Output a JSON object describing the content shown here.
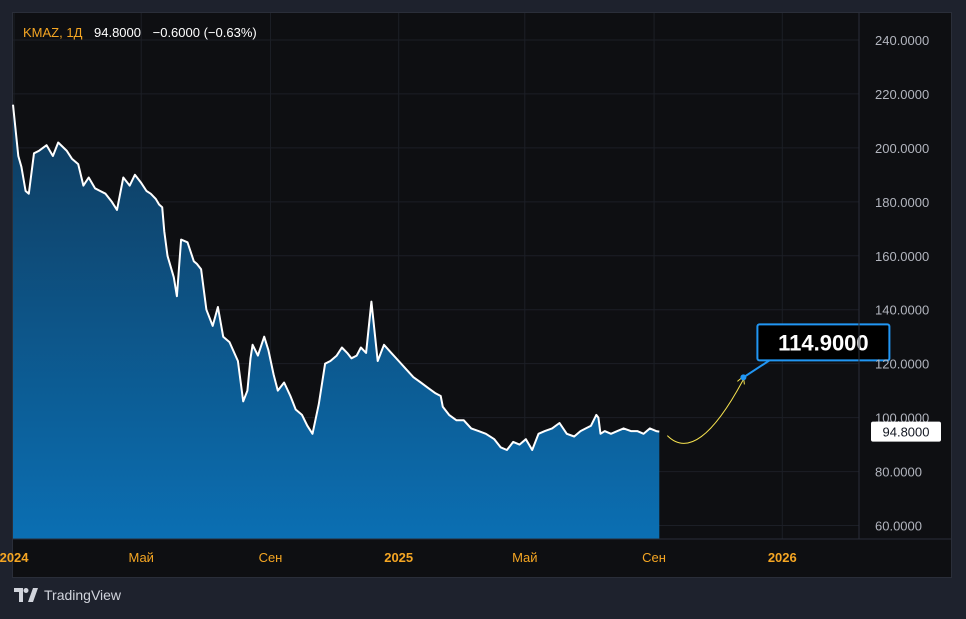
{
  "legend": {
    "symbol": "KMAZ, 1Д",
    "price": "94.8000",
    "change": "−0.6000 (−0.63%)"
  },
  "branding": {
    "name": "TradingView"
  },
  "colors": {
    "background": "#0e0f12",
    "page": "#1e222d",
    "line": "#ffffff",
    "area_top": "#0f3a5c",
    "area_bottom": "#0b6fb3",
    "accent": "#f5a623",
    "callout_border": "#2196f3",
    "forecast_arrow": "#f7e34f"
  },
  "chart_data": {
    "type": "area",
    "title": "",
    "ylim": [
      55,
      250
    ],
    "y_ticks": [
      "240.0000",
      "220.0000",
      "200.0000",
      "180.0000",
      "160.0000",
      "140.0000",
      "120.0000",
      "100.0000",
      "80.0000",
      "60.0000"
    ],
    "y_tick_values": [
      240,
      220,
      200,
      180,
      160,
      140,
      120,
      100,
      80,
      60
    ],
    "x_ticks": [
      {
        "label": "2024",
        "date": "2024-01-01",
        "bold": true
      },
      {
        "label": "Май",
        "date": "2024-05-01",
        "bold": false
      },
      {
        "label": "Сен",
        "date": "2024-09-01",
        "bold": false
      },
      {
        "label": "2025",
        "date": "2025-01-01",
        "bold": true
      },
      {
        "label": "Май",
        "date": "2025-05-01",
        "bold": false
      },
      {
        "label": "Сен",
        "date": "2025-09-01",
        "bold": false
      },
      {
        "label": "2026",
        "date": "2026-01-01",
        "bold": true
      }
    ],
    "xlim": [
      "2023-12-31",
      "2026-03-15"
    ],
    "grid": true,
    "series": [
      {
        "x": [
          "2023-12-31",
          "2024-01-05",
          "2024-01-08",
          "2024-01-12",
          "2024-01-15",
          "2024-01-20",
          "2024-01-25",
          "2024-02-01",
          "2024-02-07",
          "2024-02-12",
          "2024-02-20",
          "2024-02-25",
          "2024-03-02",
          "2024-03-07",
          "2024-03-12",
          "2024-03-18",
          "2024-03-23",
          "2024-03-28",
          "2024-04-03",
          "2024-04-08",
          "2024-04-14",
          "2024-04-20",
          "2024-04-25",
          "2024-05-01",
          "2024-05-06",
          "2024-05-10",
          "2024-05-15",
          "2024-05-18",
          "2024-05-21",
          "2024-05-23",
          "2024-05-26",
          "2024-06-01",
          "2024-06-04",
          "2024-06-08",
          "2024-06-14",
          "2024-06-20",
          "2024-06-23",
          "2024-06-27",
          "2024-07-02",
          "2024-07-08",
          "2024-07-13",
          "2024-07-18",
          "2024-07-24",
          "2024-08-01",
          "2024-08-06",
          "2024-08-10",
          "2024-08-13",
          "2024-08-15",
          "2024-08-20",
          "2024-08-26",
          "2024-08-30",
          "2024-09-04",
          "2024-09-08",
          "2024-09-14",
          "2024-09-20",
          "2024-09-25",
          "2024-10-01",
          "2024-10-06",
          "2024-10-11",
          "2024-10-17",
          "2024-10-23",
          "2024-10-28",
          "2024-11-03",
          "2024-11-08",
          "2024-11-13",
          "2024-11-17",
          "2024-11-22",
          "2024-11-26",
          "2024-12-01",
          "2024-12-06",
          "2024-12-12",
          "2024-12-18",
          "2024-12-25",
          "2025-01-01",
          "2025-01-08",
          "2025-01-15",
          "2025-01-22",
          "2025-01-29",
          "2025-02-05",
          "2025-02-10",
          "2025-02-12",
          "2025-02-14",
          "2025-02-18",
          "2025-02-25",
          "2025-03-04",
          "2025-03-11",
          "2025-03-18",
          "2025-03-25",
          "2025-04-02",
          "2025-04-08",
          "2025-04-14",
          "2025-04-20",
          "2025-04-26",
          "2025-05-02",
          "2025-05-08",
          "2025-05-14",
          "2025-05-20",
          "2025-05-27",
          "2025-06-03",
          "2025-06-10",
          "2025-06-17",
          "2025-06-23",
          "2025-06-28",
          "2025-07-03",
          "2025-07-08",
          "2025-07-10",
          "2025-07-12",
          "2025-07-16",
          "2025-07-22",
          "2025-07-28",
          "2025-08-03",
          "2025-08-10",
          "2025-08-16",
          "2025-08-22",
          "2025-08-28",
          "2025-09-03",
          "2025-09-06"
        ],
        "values": [
          216,
          197,
          193,
          184,
          183,
          198,
          199,
          201,
          197,
          202,
          199,
          196,
          194,
          186,
          189,
          185,
          184,
          183,
          180,
          177,
          189,
          186,
          190,
          187,
          184,
          183,
          181,
          179,
          178,
          169,
          160,
          152,
          145,
          166,
          165,
          158,
          157,
          155,
          140,
          134,
          141,
          130,
          128,
          121,
          106,
          110,
          122,
          127,
          123,
          130,
          125,
          116,
          110,
          113,
          108,
          103,
          101,
          97,
          94,
          105,
          120,
          121,
          123,
          126,
          124,
          122,
          123,
          126,
          124,
          143,
          121,
          127,
          124,
          121,
          118,
          115,
          113,
          111,
          109,
          108,
          104,
          103,
          101,
          99,
          99,
          96,
          95,
          94,
          92,
          89,
          88,
          91,
          90,
          92,
          88,
          94,
          95,
          96,
          98,
          94,
          93,
          95,
          96,
          97,
          101,
          100,
          94,
          95,
          94,
          95,
          96,
          95,
          95,
          94,
          96,
          95,
          94.8
        ]
      }
    ],
    "last_price_label": "94.8000",
    "forecast_label": "114.9000"
  }
}
